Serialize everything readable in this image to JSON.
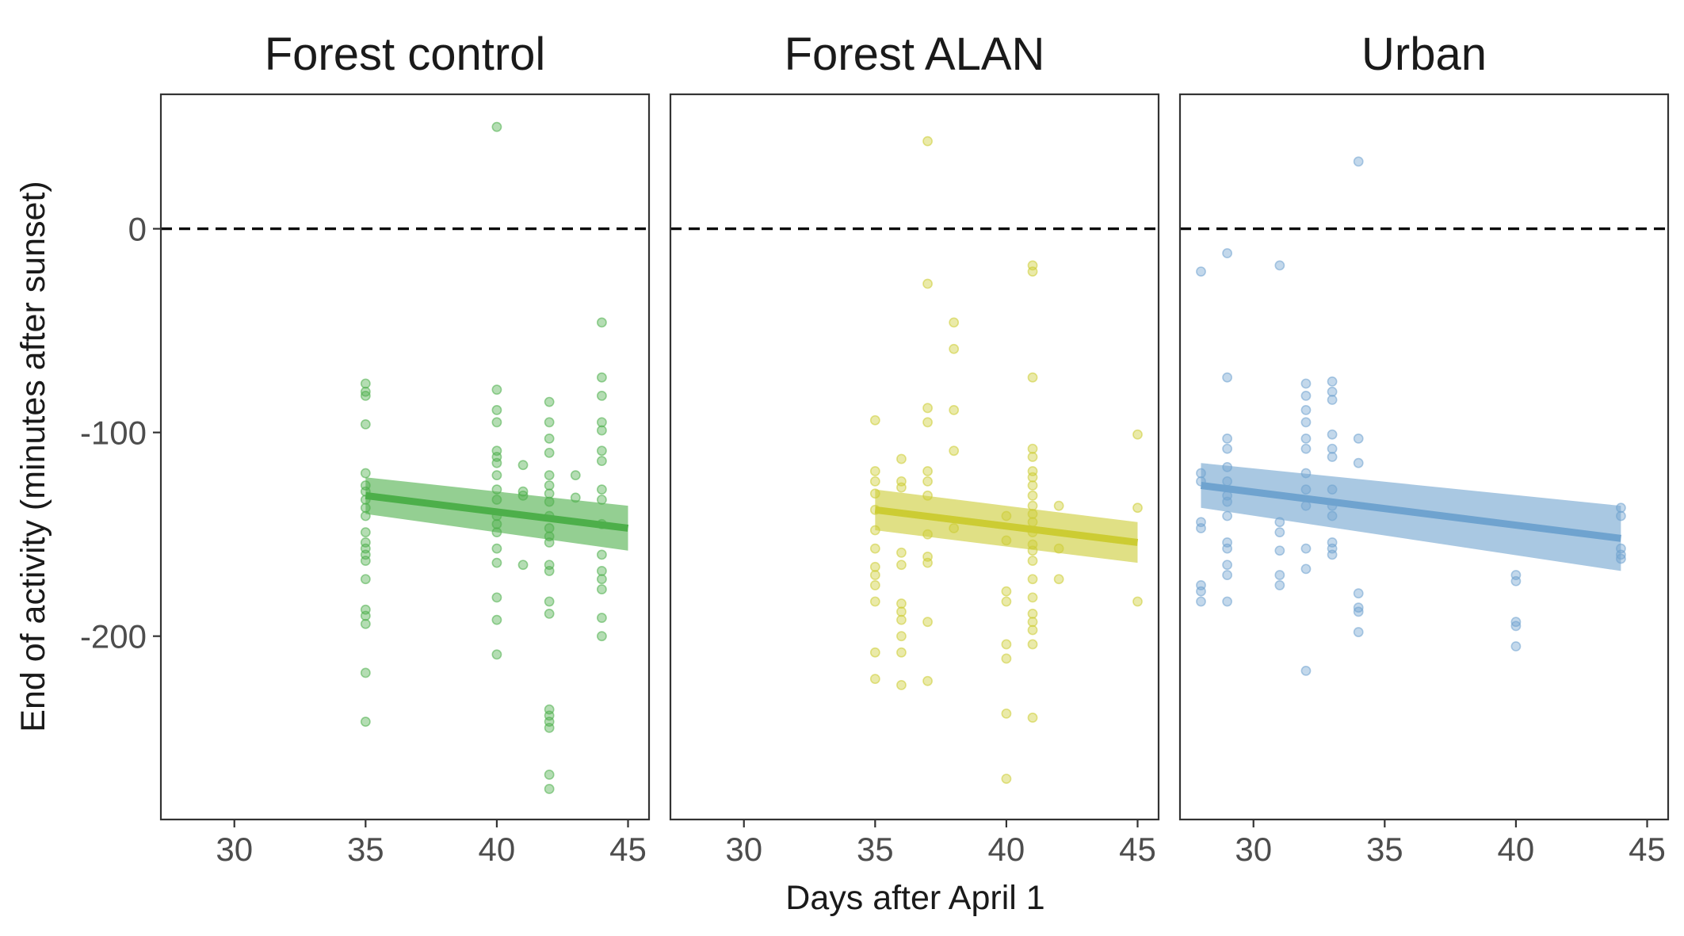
{
  "chart_data": {
    "type": "scatter",
    "xlabel": "Days after April 1",
    "ylabel": "End of activity (minutes after sunset)",
    "x_ticks": [
      30,
      35,
      40,
      45
    ],
    "y_ticks": [
      0,
      -100,
      -200
    ],
    "xlim": [
      27.2,
      45.8
    ],
    "ylim": [
      -290,
      66
    ],
    "reference_line": {
      "y": 0,
      "style": "dashed",
      "color": "#000000"
    },
    "panels": [
      {
        "title": "Forest control",
        "color": "#4daf4a",
        "fit": {
          "x": [
            35,
            45
          ],
          "y": [
            -131,
            -147
          ],
          "ci_low": [
            -140,
            -158
          ],
          "ci_high": [
            -122,
            -136
          ]
        },
        "points": [
          [
            35,
            -76
          ],
          [
            35,
            -80
          ],
          [
            35,
            -82
          ],
          [
            35,
            -96
          ],
          [
            35,
            -120
          ],
          [
            35,
            -126
          ],
          [
            35,
            -129
          ],
          [
            35,
            -133
          ],
          [
            35,
            -137
          ],
          [
            35,
            -141
          ],
          [
            35,
            -149
          ],
          [
            35,
            -154
          ],
          [
            35,
            -157
          ],
          [
            35,
            -160
          ],
          [
            35,
            -163
          ],
          [
            35,
            -172
          ],
          [
            35,
            -187
          ],
          [
            35,
            -190
          ],
          [
            35,
            -194
          ],
          [
            35,
            -218
          ],
          [
            35,
            -242
          ],
          [
            40,
            50
          ],
          [
            40,
            -79
          ],
          [
            40,
            -89
          ],
          [
            40,
            -95
          ],
          [
            40,
            -109
          ],
          [
            40,
            -112
          ],
          [
            40,
            -115
          ],
          [
            40,
            -121
          ],
          [
            40,
            -128
          ],
          [
            40,
            -133
          ],
          [
            40,
            -141
          ],
          [
            40,
            -145
          ],
          [
            40,
            -149
          ],
          [
            40,
            -157
          ],
          [
            40,
            -164
          ],
          [
            40,
            -181
          ],
          [
            40,
            -192
          ],
          [
            40,
            -209
          ],
          [
            41,
            -116
          ],
          [
            41,
            -129
          ],
          [
            41,
            -131
          ],
          [
            41,
            -165
          ],
          [
            42,
            -85
          ],
          [
            42,
            -95
          ],
          [
            42,
            -103
          ],
          [
            42,
            -110
          ],
          [
            42,
            -121
          ],
          [
            42,
            -126
          ],
          [
            42,
            -130
          ],
          [
            42,
            -134
          ],
          [
            42,
            -141
          ],
          [
            42,
            -147
          ],
          [
            42,
            -151
          ],
          [
            42,
            -154
          ],
          [
            42,
            -165
          ],
          [
            42,
            -168
          ],
          [
            42,
            -183
          ],
          [
            42,
            -189
          ],
          [
            42,
            -236
          ],
          [
            42,
            -239
          ],
          [
            42,
            -242
          ],
          [
            42,
            -245
          ],
          [
            42,
            -268
          ],
          [
            42,
            -275
          ],
          [
            43,
            -121
          ],
          [
            43,
            -132
          ],
          [
            44,
            -46
          ],
          [
            44,
            -73
          ],
          [
            44,
            -82
          ],
          [
            44,
            -95
          ],
          [
            44,
            -99
          ],
          [
            44,
            -109
          ],
          [
            44,
            -114
          ],
          [
            44,
            -128
          ],
          [
            44,
            -133
          ],
          [
            44,
            -145
          ],
          [
            44,
            -160
          ],
          [
            44,
            -168
          ],
          [
            44,
            -172
          ],
          [
            44,
            -177
          ],
          [
            44,
            -191
          ],
          [
            44,
            -200
          ]
        ]
      },
      {
        "title": "Forest ALAN",
        "color": "#cccc33",
        "fit": {
          "x": [
            35,
            45
          ],
          "y": [
            -138,
            -154
          ],
          "ci_low": [
            -148,
            -164
          ],
          "ci_high": [
            -128,
            -144
          ]
        },
        "points": [
          [
            35,
            -94
          ],
          [
            35,
            -119
          ],
          [
            35,
            -124
          ],
          [
            35,
            -130
          ],
          [
            35,
            -138
          ],
          [
            35,
            -148
          ],
          [
            35,
            -157
          ],
          [
            35,
            -166
          ],
          [
            35,
            -170
          ],
          [
            35,
            -175
          ],
          [
            35,
            -183
          ],
          [
            35,
            -208
          ],
          [
            35,
            -221
          ],
          [
            36,
            -113
          ],
          [
            36,
            -124
          ],
          [
            36,
            -127
          ],
          [
            36,
            -159
          ],
          [
            36,
            -165
          ],
          [
            36,
            -184
          ],
          [
            36,
            -188
          ],
          [
            36,
            -192
          ],
          [
            36,
            -200
          ],
          [
            36,
            -208
          ],
          [
            36,
            -224
          ],
          [
            37,
            43
          ],
          [
            37,
            -27
          ],
          [
            37,
            -88
          ],
          [
            37,
            -95
          ],
          [
            37,
            -119
          ],
          [
            37,
            -124
          ],
          [
            37,
            -131
          ],
          [
            37,
            -150
          ],
          [
            37,
            -161
          ],
          [
            37,
            -164
          ],
          [
            37,
            -193
          ],
          [
            37,
            -222
          ],
          [
            38,
            -46
          ],
          [
            38,
            -59
          ],
          [
            38,
            -89
          ],
          [
            38,
            -109
          ],
          [
            38,
            -147
          ],
          [
            40,
            -141
          ],
          [
            40,
            -153
          ],
          [
            40,
            -178
          ],
          [
            40,
            -183
          ],
          [
            40,
            -204
          ],
          [
            40,
            -211
          ],
          [
            40,
            -238
          ],
          [
            40,
            -270
          ],
          [
            41,
            -18
          ],
          [
            41,
            -21
          ],
          [
            41,
            -73
          ],
          [
            41,
            -108
          ],
          [
            41,
            -112
          ],
          [
            41,
            -119
          ],
          [
            41,
            -122
          ],
          [
            41,
            -126
          ],
          [
            41,
            -131
          ],
          [
            41,
            -136
          ],
          [
            41,
            -140
          ],
          [
            41,
            -144
          ],
          [
            41,
            -149
          ],
          [
            41,
            -155
          ],
          [
            41,
            -158
          ],
          [
            41,
            -163
          ],
          [
            41,
            -172
          ],
          [
            41,
            -181
          ],
          [
            41,
            -189
          ],
          [
            41,
            -193
          ],
          [
            41,
            -197
          ],
          [
            41,
            -204
          ],
          [
            41,
            -240
          ],
          [
            42,
            -136
          ],
          [
            42,
            -157
          ],
          [
            42,
            -172
          ],
          [
            45,
            -101
          ],
          [
            45,
            -137
          ],
          [
            45,
            -183
          ]
        ]
      },
      {
        "title": "Urban",
        "color": "#6fa3cf",
        "fit": {
          "x": [
            28,
            44
          ],
          "y": [
            -126,
            -152
          ],
          "ci_low": [
            -137,
            -168
          ],
          "ci_high": [
            -115,
            -136
          ]
        },
        "points": [
          [
            28,
            -21
          ],
          [
            28,
            -120
          ],
          [
            28,
            -124
          ],
          [
            28,
            -144
          ],
          [
            28,
            -147
          ],
          [
            28,
            -175
          ],
          [
            28,
            -178
          ],
          [
            28,
            -183
          ],
          [
            29,
            -12
          ],
          [
            29,
            -73
          ],
          [
            29,
            -103
          ],
          [
            29,
            -108
          ],
          [
            29,
            -117
          ],
          [
            29,
            -124
          ],
          [
            29,
            -131
          ],
          [
            29,
            -134
          ],
          [
            29,
            -141
          ],
          [
            29,
            -154
          ],
          [
            29,
            -157
          ],
          [
            29,
            -165
          ],
          [
            29,
            -170
          ],
          [
            29,
            -183
          ],
          [
            31,
            -18
          ],
          [
            31,
            -144
          ],
          [
            31,
            -149
          ],
          [
            31,
            -158
          ],
          [
            31,
            -170
          ],
          [
            31,
            -175
          ],
          [
            32,
            -76
          ],
          [
            32,
            -82
          ],
          [
            32,
            -89
          ],
          [
            32,
            -95
          ],
          [
            32,
            -103
          ],
          [
            32,
            -108
          ],
          [
            32,
            -120
          ],
          [
            32,
            -128
          ],
          [
            32,
            -136
          ],
          [
            32,
            -157
          ],
          [
            32,
            -167
          ],
          [
            32,
            -217
          ],
          [
            33,
            -75
          ],
          [
            33,
            -80
          ],
          [
            33,
            -84
          ],
          [
            33,
            -101
          ],
          [
            33,
            -108
          ],
          [
            33,
            -112
          ],
          [
            33,
            -128
          ],
          [
            33,
            -136
          ],
          [
            33,
            -141
          ],
          [
            33,
            -154
          ],
          [
            33,
            -157
          ],
          [
            33,
            -160
          ],
          [
            34,
            33
          ],
          [
            34,
            -103
          ],
          [
            34,
            -115
          ],
          [
            34,
            -179
          ],
          [
            34,
            -186
          ],
          [
            34,
            -188
          ],
          [
            34,
            -198
          ],
          [
            40,
            -170
          ],
          [
            40,
            -173
          ],
          [
            40,
            -193
          ],
          [
            40,
            -195
          ],
          [
            40,
            -205
          ],
          [
            44,
            -137
          ],
          [
            44,
            -141
          ],
          [
            44,
            -157
          ],
          [
            44,
            -160
          ],
          [
            44,
            -162
          ]
        ]
      }
    ]
  }
}
